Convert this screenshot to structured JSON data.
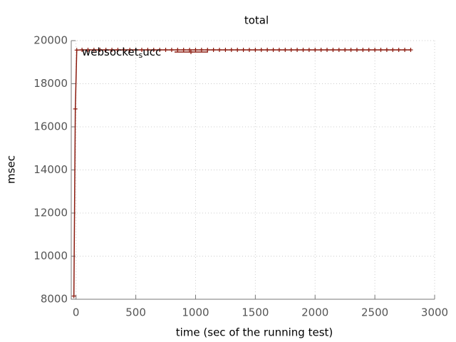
{
  "chart_data": {
    "type": "line",
    "title": "total",
    "xlabel": "time (sec of the running test)",
    "ylabel": "msec",
    "xlim": [
      -40,
      3000
    ],
    "ylim": [
      8000,
      20000
    ],
    "xticks": [
      0,
      500,
      1000,
      1500,
      2000,
      2500,
      3000
    ],
    "yticks": [
      8000,
      10000,
      12000,
      14000,
      16000,
      18000,
      20000
    ],
    "grid": true,
    "legend": "top-left",
    "series": [
      {
        "name": "websocket_succ",
        "color": "#8b1a0e",
        "x": [
          -18,
          -6,
          6,
          50,
          100,
          150,
          200,
          250,
          300,
          350,
          400,
          450,
          500,
          550,
          600,
          650,
          700,
          750,
          800,
          850,
          900,
          950,
          1000,
          1050,
          1100,
          1150,
          1200,
          1250,
          1300,
          1350,
          1400,
          1450,
          1500,
          1550,
          1600,
          1650,
          1700,
          1750,
          1800,
          1850,
          1900,
          1950,
          2000,
          2050,
          2100,
          2150,
          2200,
          2250,
          2300,
          2350,
          2400,
          2450,
          2500,
          2550,
          2600,
          2650,
          2700,
          2750,
          2800
        ],
        "values": [
          8150,
          16830,
          19560,
          19570,
          19570,
          19570,
          19570,
          19570,
          19570,
          19570,
          19570,
          19570,
          19570,
          19570,
          19570,
          19570,
          19570,
          19570,
          19570,
          19570,
          19570,
          19570,
          19570,
          19570,
          19570,
          19570,
          19570,
          19570,
          19570,
          19570,
          19570,
          19570,
          19570,
          19570,
          19570,
          19570,
          19570,
          19570,
          19570,
          19570,
          19570,
          19570,
          19570,
          19570,
          19570,
          19570,
          19570,
          19570,
          19570,
          19570,
          19570,
          19570,
          19570,
          19570,
          19570,
          19570,
          19570,
          19570,
          19570
        ]
      }
    ]
  }
}
